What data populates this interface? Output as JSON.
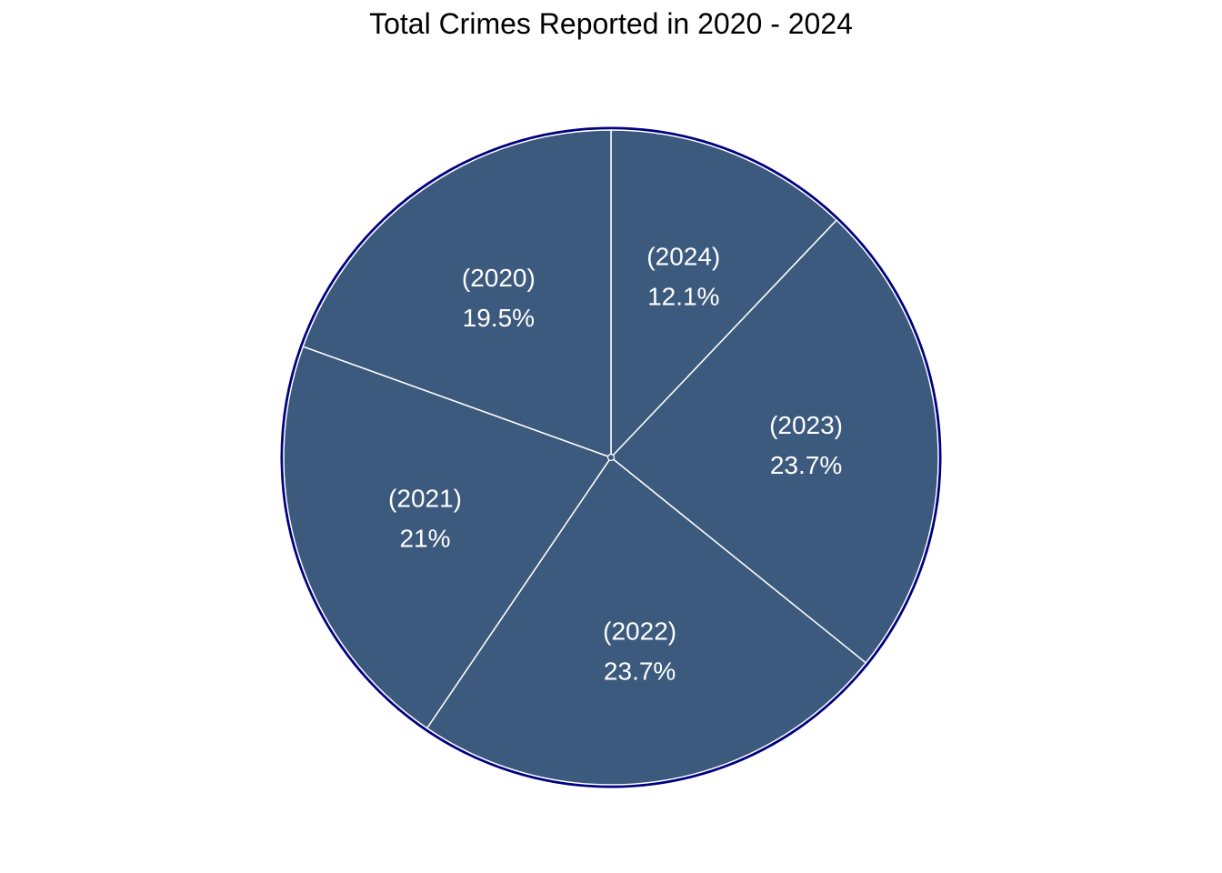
{
  "chart_data": {
    "type": "pie",
    "title": "Total Crimes Reported in 2020 - 2024",
    "slices": [
      {
        "name": "2024",
        "label": "(2024)",
        "percent_label": "12.1%",
        "value": 12.1
      },
      {
        "name": "2023",
        "label": "(2023)",
        "percent_label": "23.7%",
        "value": 23.7
      },
      {
        "name": "2022",
        "label": "(2022)",
        "percent_label": "23.7%",
        "value": 23.7
      },
      {
        "name": "2021",
        "label": "(2021)",
        "percent_label": "21%",
        "value": 21.0
      },
      {
        "name": "2020",
        "label": "(2020)",
        "percent_label": "19.5%",
        "value": 19.5
      }
    ],
    "start_angle": "12 o'clock",
    "direction": "clockwise",
    "colors": {
      "fill": "#3c5a7d",
      "slice_border": "#ffffff",
      "outline": "#000080",
      "label_text": "#ffffff"
    }
  }
}
